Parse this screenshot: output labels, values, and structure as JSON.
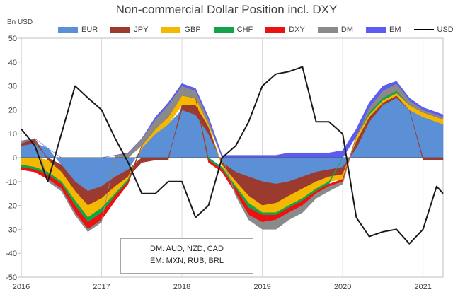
{
  "chart_data": {
    "type": "area",
    "title": "Non-commercial Dollar Position incl. DXY",
    "ylabel": "Bn USD",
    "ylim": [
      -50,
      50
    ],
    "yticks": [
      -50,
      -40,
      -30,
      -20,
      -10,
      0,
      10,
      20,
      30,
      40,
      50
    ],
    "xlim": [
      2016.0,
      2021.25
    ],
    "xticks": [
      {
        "label": "2016",
        "value": 2016.0
      },
      {
        "label": "2017",
        "value": 2017.0
      },
      {
        "label": "2018",
        "value": 2018.0
      },
      {
        "label": "2019",
        "value": 2019.0
      },
      {
        "label": "2020",
        "value": 2020.0
      },
      {
        "label": "2021",
        "value": 2021.0
      }
    ],
    "legend": [
      {
        "name": "EUR",
        "color": "#5b8fd6",
        "kind": "area"
      },
      {
        "name": "JPY",
        "color": "#9b3b30",
        "kind": "area"
      },
      {
        "name": "GBP",
        "color": "#f5b800",
        "kind": "area"
      },
      {
        "name": "CHF",
        "color": "#13a34a",
        "kind": "area"
      },
      {
        "name": "DXY",
        "color": "#ee1111",
        "kind": "area"
      },
      {
        "name": "DM",
        "color": "#8a8a8a",
        "kind": "area"
      },
      {
        "name": "EM",
        "color": "#5c5cf0",
        "kind": "area"
      },
      {
        "name": "USD",
        "color": "#1a1a1a",
        "kind": "line"
      }
    ],
    "x": [
      2016.0,
      2016.17,
      2016.33,
      2016.5,
      2016.67,
      2016.83,
      2017.0,
      2017.17,
      2017.33,
      2017.5,
      2017.67,
      2017.83,
      2018.0,
      2018.17,
      2018.33,
      2018.5,
      2018.67,
      2018.83,
      2019.0,
      2019.17,
      2019.33,
      2019.5,
      2019.67,
      2019.83,
      2020.0,
      2020.17,
      2020.33,
      2020.5,
      2020.67,
      2020.83,
      2021.0,
      2021.17,
      2021.25
    ],
    "series": [
      {
        "name": "EUR",
        "values": [
          5,
          6,
          4,
          -3,
          -10,
          -14,
          -12,
          -8,
          -5,
          4,
          10,
          14,
          20,
          18,
          10,
          -2,
          -6,
          -8,
          -10,
          -11,
          -10,
          -8,
          -6,
          -5,
          -4,
          4,
          15,
          22,
          25,
          20,
          17,
          15,
          14
        ]
      },
      {
        "name": "JPY",
        "values": [
          1,
          2,
          -1,
          -3,
          -4,
          -6,
          -5,
          -4,
          -3,
          -2,
          -1,
          -1,
          2,
          4,
          3,
          -1,
          -4,
          -8,
          -10,
          -8,
          -6,
          -5,
          -4,
          -3,
          -3,
          3,
          2,
          1,
          1,
          0,
          -1,
          -1,
          -1
        ]
      },
      {
        "name": "GBP",
        "values": [
          -3,
          -4,
          -5,
          -4,
          -4,
          -5,
          -4,
          -3,
          -1,
          1,
          2,
          3,
          4,
          3,
          1,
          -1,
          -2,
          -3,
          -3,
          -4,
          -4,
          -4,
          -3,
          -2,
          -2,
          2,
          1,
          1,
          1,
          2,
          2,
          2,
          2
        ]
      },
      {
        "name": "CHF",
        "values": [
          -1,
          -1,
          -1,
          -1,
          -2,
          -2,
          -2,
          -1,
          -1,
          0,
          0,
          0,
          0,
          0,
          -1,
          -1,
          -1,
          -2,
          -1,
          -1,
          -1,
          -1,
          -1,
          -1,
          0,
          0,
          1,
          1,
          1,
          0,
          0,
          0,
          0
        ]
      },
      {
        "name": "DXY",
        "values": [
          -1,
          -1,
          -2,
          -2,
          -3,
          -3,
          -3,
          -2,
          -1,
          0,
          0,
          0,
          0,
          0,
          -1,
          -1,
          -2,
          -3,
          -3,
          -2,
          -2,
          -2,
          -1,
          -1,
          -1,
          0,
          0,
          0,
          0,
          0,
          0,
          0,
          0
        ]
      },
      {
        "name": "DM",
        "values": [
          1,
          0,
          -1,
          -1,
          -1,
          -1,
          -1,
          1,
          2,
          3,
          4,
          5,
          4,
          3,
          2,
          0,
          -1,
          -2,
          -3,
          -4,
          -3,
          -3,
          -2,
          -2,
          -1,
          0,
          2,
          3,
          3,
          2,
          1,
          1,
          1
        ]
      },
      {
        "name": "EM",
        "values": [
          0,
          0,
          0,
          0,
          0,
          0,
          0,
          0,
          0,
          0,
          1,
          1,
          1,
          1,
          1,
          1,
          1,
          1,
          1,
          1,
          2,
          2,
          2,
          2,
          3,
          3,
          2,
          2,
          1,
          1,
          1,
          1,
          1
        ]
      },
      {
        "name": "USD",
        "values": [
          12,
          5,
          -10,
          10,
          30,
          25,
          20,
          8,
          -2,
          -15,
          -15,
          -10,
          -10,
          -25,
          -20,
          0,
          5,
          15,
          30,
          35,
          36,
          38,
          15,
          15,
          10,
          -25,
          -33,
          -31,
          -30,
          -36,
          -30,
          -12,
          -15
        ]
      }
    ],
    "annotation": {
      "line1": "DM: AUD, NZD, CAD",
      "line2": "EM: MXN, RUB, BRL"
    }
  }
}
